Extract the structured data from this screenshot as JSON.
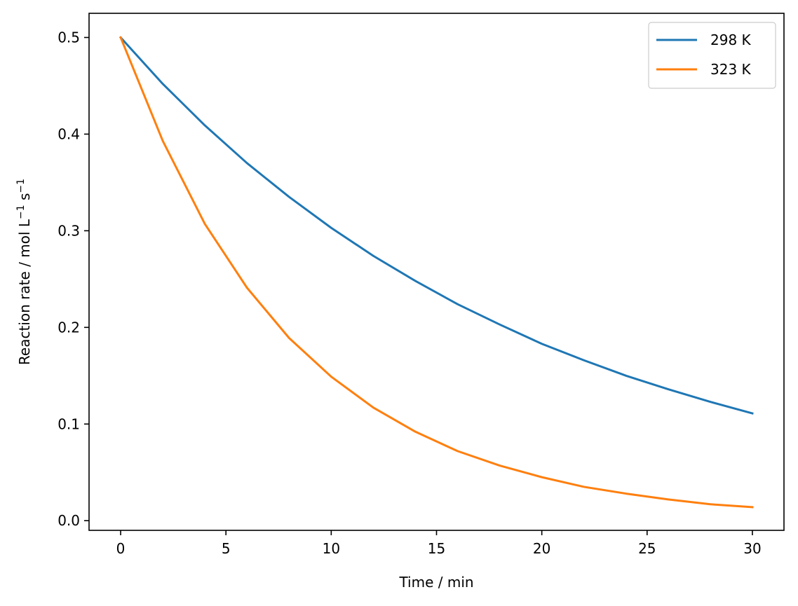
{
  "chart_data": {
    "type": "line",
    "title": "",
    "xlabel": "Time / min",
    "ylabel": "Reaction rate / mol L",
    "ylabel_sup1": "−1",
    "ylabel_mid": " s",
    "ylabel_sup2": "−1",
    "xlim": [
      -1.5,
      31.5
    ],
    "ylim": [
      -0.01,
      0.525
    ],
    "xticks": [
      0,
      5,
      10,
      15,
      20,
      25,
      30
    ],
    "xtick_labels": [
      "0",
      "5",
      "10",
      "15",
      "20",
      "25",
      "30"
    ],
    "yticks": [
      0.0,
      0.1,
      0.2,
      0.3,
      0.4,
      0.5
    ],
    "ytick_labels": [
      "0.0",
      "0.1",
      "0.2",
      "0.3",
      "0.4",
      "0.5"
    ],
    "grid": false,
    "legend_position": "top-right",
    "x": [
      0,
      2,
      4,
      6,
      8,
      10,
      12,
      14,
      16,
      18,
      20,
      22,
      24,
      26,
      28,
      30
    ],
    "series": [
      {
        "name": "298 K",
        "color": "#1f77b4",
        "values": [
          0.5,
          0.452,
          0.409,
          0.37,
          0.335,
          0.303,
          0.274,
          0.248,
          0.224,
          0.203,
          0.183,
          0.166,
          0.15,
          0.136,
          0.123,
          0.111
        ]
      },
      {
        "name": "323 K",
        "color": "#ff7f0e",
        "values": [
          0.5,
          0.393,
          0.307,
          0.241,
          0.189,
          0.149,
          0.117,
          0.092,
          0.072,
          0.057,
          0.045,
          0.035,
          0.028,
          0.022,
          0.017,
          0.014
        ]
      }
    ]
  }
}
